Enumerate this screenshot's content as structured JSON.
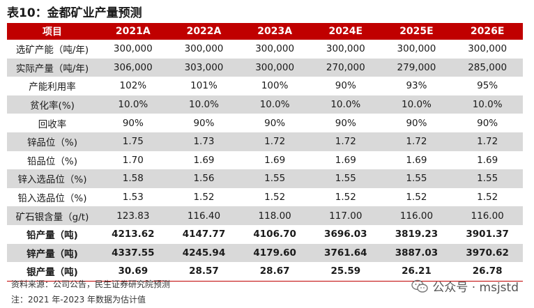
{
  "title": "表10：金都矿业产量预测",
  "table": {
    "headers": [
      "项目",
      "2021A",
      "2022A",
      "2023A",
      "2024E",
      "2025E",
      "2026E"
    ],
    "rows": [
      {
        "label": "选矿产能（吨/年)",
        "bold": false,
        "values": [
          "300,000",
          "300,000",
          "300,000",
          "300,000",
          "300,000",
          "300,000"
        ]
      },
      {
        "label": "实际产量（吨/年)",
        "bold": false,
        "values": [
          "306,000",
          "303,000",
          "300,000",
          "270,000",
          "279,000",
          "285,000"
        ]
      },
      {
        "label": "产能利用率",
        "bold": false,
        "values": [
          "102%",
          "101%",
          "100%",
          "90%",
          "93%",
          "95%"
        ]
      },
      {
        "label": "贫化率(%)",
        "bold": false,
        "values": [
          "10.0%",
          "10.0%",
          "10.0%",
          "10.0%",
          "10.0%",
          "10.0%"
        ]
      },
      {
        "label": "回收率",
        "bold": false,
        "values": [
          "90%",
          "90%",
          "90%",
          "90%",
          "90%",
          "90%"
        ]
      },
      {
        "label": "锌品位（%)",
        "bold": false,
        "values": [
          "1.75",
          "1.73",
          "1.72",
          "1.72",
          "1.72",
          "1.72"
        ]
      },
      {
        "label": "铅品位（%)",
        "bold": false,
        "values": [
          "1.70",
          "1.69",
          "1.69",
          "1.69",
          "1.69",
          "1.69"
        ]
      },
      {
        "label": "锌入选品位（%)",
        "bold": false,
        "values": [
          "1.58",
          "1.56",
          "1.55",
          "1.55",
          "1.55",
          "1.55"
        ]
      },
      {
        "label": "铅入选品位（%)",
        "bold": false,
        "values": [
          "1.53",
          "1.52",
          "1.52",
          "1.52",
          "1.52",
          "1.52"
        ]
      },
      {
        "label": "矿石银含量（g/t)",
        "bold": false,
        "values": [
          "123.83",
          "116.40",
          "118.00",
          "117.00",
          "116.00",
          "116.00"
        ]
      },
      {
        "label": "铅产量（吨)",
        "bold": true,
        "values": [
          "4213.62",
          "4147.77",
          "4106.70",
          "3696.03",
          "3819.23",
          "3901.37"
        ]
      },
      {
        "label": "锌产量（吨)",
        "bold": true,
        "values": [
          "4337.55",
          "4245.94",
          "4179.60",
          "3761.64",
          "3887.03",
          "3970.62"
        ]
      },
      {
        "label": "银产量（吨)",
        "bold": true,
        "values": [
          "30.69",
          "28.57",
          "28.67",
          "25.59",
          "26.21",
          "26.78"
        ]
      }
    ]
  },
  "footer": {
    "source": "资料来源：公司公告，民生证券研究院预测",
    "note": "注：2021 年-2023 年数据为估计值"
  },
  "watermark": {
    "icon": "wechat-icon",
    "text": "公众号 · msjstd"
  },
  "colors": {
    "header_bg": "#c00000",
    "header_text": "#ffffff",
    "stripe": "#d9d9d9",
    "accent": "#b8001f"
  }
}
